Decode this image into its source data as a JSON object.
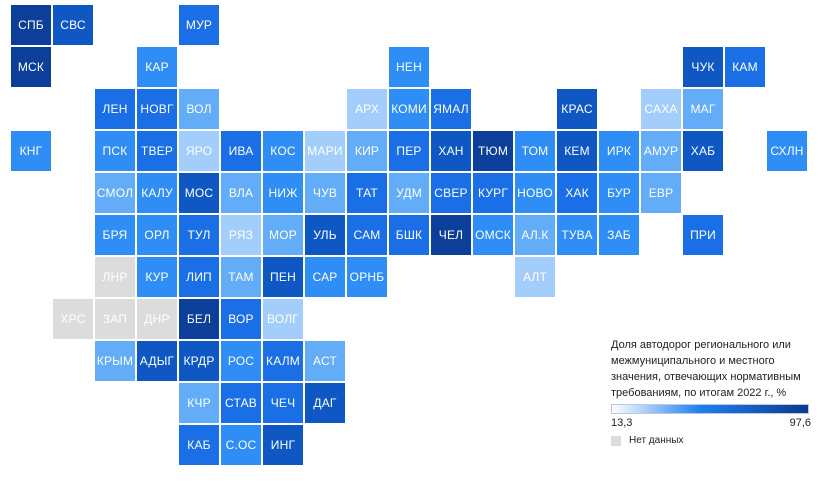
{
  "legend": {
    "title": "Доля автодорог регионального или межмуниципального и местного значения, отвечающих нормативным требованиям, по итогам 2022 г., %",
    "min_label": "13,3",
    "max_label": "97,6",
    "no_data_label": "Нет данных",
    "no_data_color": "#dcdcdc"
  },
  "palette": {
    "c1": "#a3cdfb",
    "c2": "#63adf8",
    "c3": "#2f8ef5",
    "c4": "#1a6fe6",
    "c5": "#0f58c4",
    "c6": "#0b3f99"
  },
  "regions": [
    {
      "code": "СПБ",
      "row": 0,
      "col": 0,
      "shade": "c6"
    },
    {
      "code": "СВС",
      "row": 0,
      "col": 1,
      "shade": "c5"
    },
    {
      "code": "МУР",
      "row": 0,
      "col": 4,
      "shade": "c4"
    },
    {
      "code": "МСК",
      "row": 1,
      "col": 0,
      "shade": "c6"
    },
    {
      "code": "КАР",
      "row": 1,
      "col": 3,
      "shade": "c3"
    },
    {
      "code": "НЕН",
      "row": 1,
      "col": 9,
      "shade": "c3"
    },
    {
      "code": "ЧУК",
      "row": 1,
      "col": 16,
      "shade": "c5"
    },
    {
      "code": "КАМ",
      "row": 1,
      "col": 17,
      "shade": "c4"
    },
    {
      "code": "ЛЕН",
      "row": 2,
      "col": 2,
      "shade": "c4"
    },
    {
      "code": "НОВГ",
      "row": 2,
      "col": 3,
      "shade": "c4"
    },
    {
      "code": "ВОЛ",
      "row": 2,
      "col": 4,
      "shade": "c2"
    },
    {
      "code": "АРХ",
      "row": 2,
      "col": 8,
      "shade": "c1"
    },
    {
      "code": "КОМИ",
      "row": 2,
      "col": 9,
      "shade": "c3"
    },
    {
      "code": "ЯМАЛ",
      "row": 2,
      "col": 10,
      "shade": "c4"
    },
    {
      "code": "КРАС",
      "row": 2,
      "col": 13,
      "shade": "c5"
    },
    {
      "code": "САХА",
      "row": 2,
      "col": 15,
      "shade": "c1"
    },
    {
      "code": "МАГ",
      "row": 2,
      "col": 16,
      "shade": "c2"
    },
    {
      "code": "КНГ",
      "row": 3,
      "col": 0,
      "shade": "c3"
    },
    {
      "code": "ПСК",
      "row": 3,
      "col": 2,
      "shade": "c3"
    },
    {
      "code": "ТВЕР",
      "row": 3,
      "col": 3,
      "shade": "c4"
    },
    {
      "code": "ЯРО",
      "row": 3,
      "col": 4,
      "shade": "c1"
    },
    {
      "code": "ИВА",
      "row": 3,
      "col": 5,
      "shade": "c4"
    },
    {
      "code": "КОС",
      "row": 3,
      "col": 6,
      "shade": "c3"
    },
    {
      "code": "МАРИ",
      "row": 3,
      "col": 7,
      "shade": "c1"
    },
    {
      "code": "КИР",
      "row": 3,
      "col": 8,
      "shade": "c2"
    },
    {
      "code": "ПЕР",
      "row": 3,
      "col": 9,
      "shade": "c4"
    },
    {
      "code": "ХАН",
      "row": 3,
      "col": 10,
      "shade": "c5"
    },
    {
      "code": "ТЮМ",
      "row": 3,
      "col": 11,
      "shade": "c6"
    },
    {
      "code": "ТОМ",
      "row": 3,
      "col": 12,
      "shade": "c3"
    },
    {
      "code": "КЕМ",
      "row": 3,
      "col": 13,
      "shade": "c5"
    },
    {
      "code": "ИРК",
      "row": 3,
      "col": 14,
      "shade": "c3"
    },
    {
      "code": "АМУР",
      "row": 3,
      "col": 15,
      "shade": "c2"
    },
    {
      "code": "ХАБ",
      "row": 3,
      "col": 16,
      "shade": "c5"
    },
    {
      "code": "СХЛН",
      "row": 3,
      "col": 18,
      "shade": "c3"
    },
    {
      "code": "СМОЛ",
      "row": 4,
      "col": 2,
      "shade": "c2"
    },
    {
      "code": "КАЛУ",
      "row": 4,
      "col": 3,
      "shade": "c3"
    },
    {
      "code": "МОС",
      "row": 4,
      "col": 4,
      "shade": "c5"
    },
    {
      "code": "ВЛА",
      "row": 4,
      "col": 5,
      "shade": "c2"
    },
    {
      "code": "НИЖ",
      "row": 4,
      "col": 6,
      "shade": "c3"
    },
    {
      "code": "ЧУВ",
      "row": 4,
      "col": 7,
      "shade": "c2"
    },
    {
      "code": "ТАТ",
      "row": 4,
      "col": 8,
      "shade": "c4"
    },
    {
      "code": "УДМ",
      "row": 4,
      "col": 9,
      "shade": "c2"
    },
    {
      "code": "СВЕР",
      "row": 4,
      "col": 10,
      "shade": "c4"
    },
    {
      "code": "КУРГ",
      "row": 4,
      "col": 11,
      "shade": "c4"
    },
    {
      "code": "НОВО",
      "row": 4,
      "col": 12,
      "shade": "c3"
    },
    {
      "code": "ХАК",
      "row": 4,
      "col": 13,
      "shade": "c4"
    },
    {
      "code": "БУР",
      "row": 4,
      "col": 14,
      "shade": "c3"
    },
    {
      "code": "ЕВР",
      "row": 4,
      "col": 15,
      "shade": "c2"
    },
    {
      "code": "БРЯ",
      "row": 5,
      "col": 2,
      "shade": "c3"
    },
    {
      "code": "ОРЛ",
      "row": 5,
      "col": 3,
      "shade": "c3"
    },
    {
      "code": "ТУЛ",
      "row": 5,
      "col": 4,
      "shade": "c4"
    },
    {
      "code": "РЯЗ",
      "row": 5,
      "col": 5,
      "shade": "c1"
    },
    {
      "code": "МОР",
      "row": 5,
      "col": 6,
      "shade": "c2"
    },
    {
      "code": "УЛЬ",
      "row": 5,
      "col": 7,
      "shade": "c5"
    },
    {
      "code": "САМ",
      "row": 5,
      "col": 8,
      "shade": "c4"
    },
    {
      "code": "БШК",
      "row": 5,
      "col": 9,
      "shade": "c4"
    },
    {
      "code": "ЧЕЛ",
      "row": 5,
      "col": 10,
      "shade": "c6"
    },
    {
      "code": "ОМСК",
      "row": 5,
      "col": 11,
      "shade": "c3"
    },
    {
      "code": "АЛ.К",
      "row": 5,
      "col": 12,
      "shade": "c2"
    },
    {
      "code": "ТУВА",
      "row": 5,
      "col": 13,
      "shade": "c3"
    },
    {
      "code": "ЗАБ",
      "row": 5,
      "col": 14,
      "shade": "c3"
    },
    {
      "code": "ПРИ",
      "row": 5,
      "col": 16,
      "shade": "c4"
    },
    {
      "code": "ЛНР",
      "row": 6,
      "col": 2,
      "shade": "nd"
    },
    {
      "code": "КУР",
      "row": 6,
      "col": 3,
      "shade": "c3"
    },
    {
      "code": "ЛИП",
      "row": 6,
      "col": 4,
      "shade": "c4"
    },
    {
      "code": "ТАМ",
      "row": 6,
      "col": 5,
      "shade": "c2"
    },
    {
      "code": "ПЕН",
      "row": 6,
      "col": 6,
      "shade": "c5"
    },
    {
      "code": "САР",
      "row": 6,
      "col": 7,
      "shade": "c3"
    },
    {
      "code": "ОРНБ",
      "row": 6,
      "col": 8,
      "shade": "c3"
    },
    {
      "code": "АЛТ",
      "row": 6,
      "col": 12,
      "shade": "c1"
    },
    {
      "code": "ХРС",
      "row": 7,
      "col": 1,
      "shade": "nd"
    },
    {
      "code": "ЗАП",
      "row": 7,
      "col": 2,
      "shade": "nd"
    },
    {
      "code": "ДНР",
      "row": 7,
      "col": 3,
      "shade": "nd"
    },
    {
      "code": "БЕЛ",
      "row": 7,
      "col": 4,
      "shade": "c6"
    },
    {
      "code": "ВОР",
      "row": 7,
      "col": 5,
      "shade": "c4"
    },
    {
      "code": "ВОЛГ",
      "row": 7,
      "col": 6,
      "shade": "c1"
    },
    {
      "code": "КРЫМ",
      "row": 8,
      "col": 2,
      "shade": "c2"
    },
    {
      "code": "АДЫГ",
      "row": 8,
      "col": 3,
      "shade": "c5"
    },
    {
      "code": "КРДР",
      "row": 8,
      "col": 4,
      "shade": "c5"
    },
    {
      "code": "РОС",
      "row": 8,
      "col": 5,
      "shade": "c3"
    },
    {
      "code": "КАЛМ",
      "row": 8,
      "col": 6,
      "shade": "c4"
    },
    {
      "code": "АСТ",
      "row": 8,
      "col": 7,
      "shade": "c2"
    },
    {
      "code": "КЧР",
      "row": 9,
      "col": 4,
      "shade": "c2"
    },
    {
      "code": "СТАВ",
      "row": 9,
      "col": 5,
      "shade": "c4"
    },
    {
      "code": "ЧЕЧ",
      "row": 9,
      "col": 6,
      "shade": "c4"
    },
    {
      "code": "ДАГ",
      "row": 9,
      "col": 7,
      "shade": "c5"
    },
    {
      "code": "КАБ",
      "row": 10,
      "col": 4,
      "shade": "c4"
    },
    {
      "code": "С.ОС",
      "row": 10,
      "col": 5,
      "shade": "c3"
    },
    {
      "code": "ИНГ",
      "row": 10,
      "col": 6,
      "shade": "c5"
    }
  ]
}
